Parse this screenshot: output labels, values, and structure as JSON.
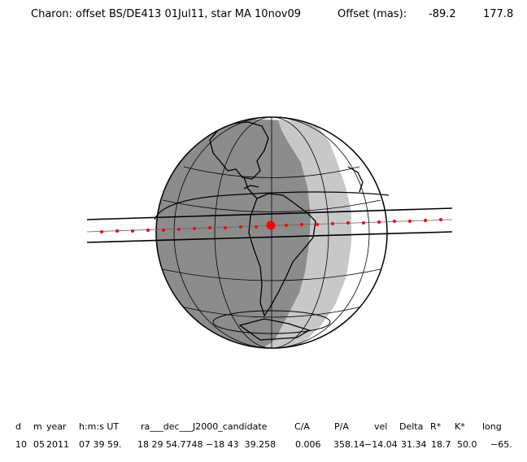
{
  "header": {
    "body": "Charon: offset BS/DE413 01Jul11, star MA 10nov09",
    "offset_label": "Offset (mas):",
    "offset_ra": "-89.2",
    "offset_dec": "177.8"
  },
  "table": {
    "headers": [
      "d",
      "m",
      "year",
      "h:m:s UT",
      "ra___dec___J2000_candidate",
      "C/A",
      "P/A",
      "vel",
      "Delta",
      "R*",
      "K*",
      "long"
    ],
    "values": [
      "10",
      "05",
      "2011",
      "07 39 59.",
      "18 29 54.7748 −18 43  39.258",
      "0.006",
      "358.14",
      "−14.04",
      "31.34",
      "18.7",
      "50.0",
      "−65."
    ]
  },
  "colors": {
    "night": "#8c8c8c",
    "twilight": "#c8c8c8",
    "day": "#ffffff",
    "track_dot": "#ff0000",
    "line": "#000000"
  },
  "map": {
    "projection": "orthographic",
    "central_point_marker": "large red dot"
  }
}
